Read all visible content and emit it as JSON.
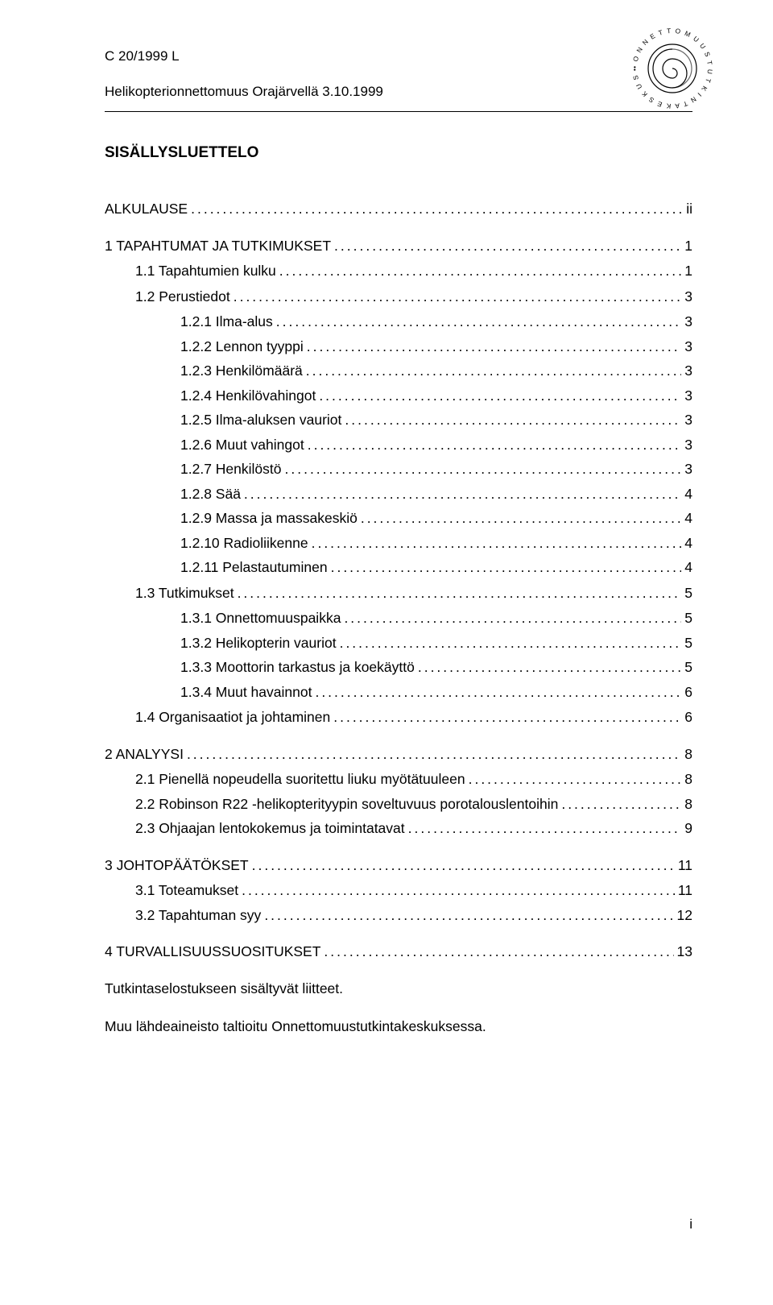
{
  "header": {
    "doc_id": "C 20/1999 L",
    "subtitle": "Helikopterionnettomuus Orajärvellä 3.10.1999",
    "logo_label": "onnettomuustutkintakeskus-logo"
  },
  "title": "SISÄLLYSLUETTELO",
  "toc": [
    {
      "label": "ALKULAUSE",
      "page": "ii",
      "indent": 0,
      "gap": "l"
    },
    {
      "label": "1  TAPAHTUMAT JA TUTKIMUKSET",
      "page": "1",
      "indent": 0,
      "gap": "l"
    },
    {
      "label": "1.1    Tapahtumien kulku",
      "page": "1",
      "indent": 1,
      "gap": "m"
    },
    {
      "label": "1.2    Perustiedot",
      "page": "3",
      "indent": 1,
      "gap": "m"
    },
    {
      "label": "1.2.1  Ilma-alus",
      "page": "3",
      "indent": 2,
      "gap": "m"
    },
    {
      "label": "1.2.2  Lennon tyyppi",
      "page": "3",
      "indent": 2,
      "gap": ""
    },
    {
      "label": "1.2.3  Henkilömäärä",
      "page": "3",
      "indent": 2,
      "gap": ""
    },
    {
      "label": "1.2.4  Henkilövahingot",
      "page": "3",
      "indent": 2,
      "gap": ""
    },
    {
      "label": "1.2.5  Ilma-aluksen vauriot",
      "page": "3",
      "indent": 2,
      "gap": ""
    },
    {
      "label": "1.2.6  Muut vahingot",
      "page": "3",
      "indent": 2,
      "gap": ""
    },
    {
      "label": "1.2.7  Henkilöstö",
      "page": "3",
      "indent": 2,
      "gap": ""
    },
    {
      "label": "1.2.8  Sää",
      "page": "4",
      "indent": 2,
      "gap": ""
    },
    {
      "label": "1.2.9  Massa ja massakeskiö",
      "page": "4",
      "indent": 2,
      "gap": ""
    },
    {
      "label": "1.2.10 Radioliikenne",
      "page": "4",
      "indent": 2,
      "gap": ""
    },
    {
      "label": "1.2.11 Pelastautuminen",
      "page": "4",
      "indent": 2,
      "gap": ""
    },
    {
      "label": "1.3    Tutkimukset",
      "page": "5",
      "indent": 1,
      "gap": "m"
    },
    {
      "label": "1.3.1  Onnettomuuspaikka",
      "page": "5",
      "indent": 2,
      "gap": "m"
    },
    {
      "label": "1.3.2  Helikopterin vauriot",
      "page": "5",
      "indent": 2,
      "gap": ""
    },
    {
      "label": "1.3.3  Moottorin tarkastus ja koekäyttö",
      "page": "5",
      "indent": 2,
      "gap": ""
    },
    {
      "label": "1.3.4  Muut havainnot",
      "page": "6",
      "indent": 2,
      "gap": ""
    },
    {
      "label": "1.4    Organisaatiot ja johtaminen",
      "page": "6",
      "indent": 1,
      "gap": "m"
    },
    {
      "label": "2  ANALYYSI",
      "page": "8",
      "indent": 0,
      "gap": "l"
    },
    {
      "label": "2.1    Pienellä nopeudella suoritettu liuku myötätuuleen",
      "page": "8",
      "indent": 1,
      "gap": "m"
    },
    {
      "label": "2.2    Robinson R22 -helikopterityypin soveltuvuus porotalouslentoihin",
      "page": "8",
      "indent": 1,
      "gap": ""
    },
    {
      "label": "2.3    Ohjaajan lentokokemus ja toimintatavat",
      "page": "9",
      "indent": 1,
      "gap": ""
    },
    {
      "label": "3  JOHTOPÄÄTÖKSET",
      "page": "11",
      "indent": 0,
      "gap": "l"
    },
    {
      "label": "3.1    Toteamukset",
      "page": "11",
      "indent": 1,
      "gap": "m"
    },
    {
      "label": "3.2    Tapahtuman syy",
      "page": "12",
      "indent": 1,
      "gap": ""
    },
    {
      "label": "4  TURVALLISUUSSUOSITUKSET",
      "page": "13",
      "indent": 0,
      "gap": "l"
    }
  ],
  "footer_lines": [
    "Tutkintaselostukseen sisältyvät liitteet.",
    "Muu lähdeaineisto taltioitu Onnettomuustutkintakeskuksessa."
  ],
  "page_number": "i",
  "colors": {
    "text": "#000000",
    "background": "#ffffff",
    "rule": "#000000"
  },
  "typography": {
    "body_fontsize_pt": 13,
    "title_fontsize_pt": 14,
    "font_family": "Arial"
  }
}
